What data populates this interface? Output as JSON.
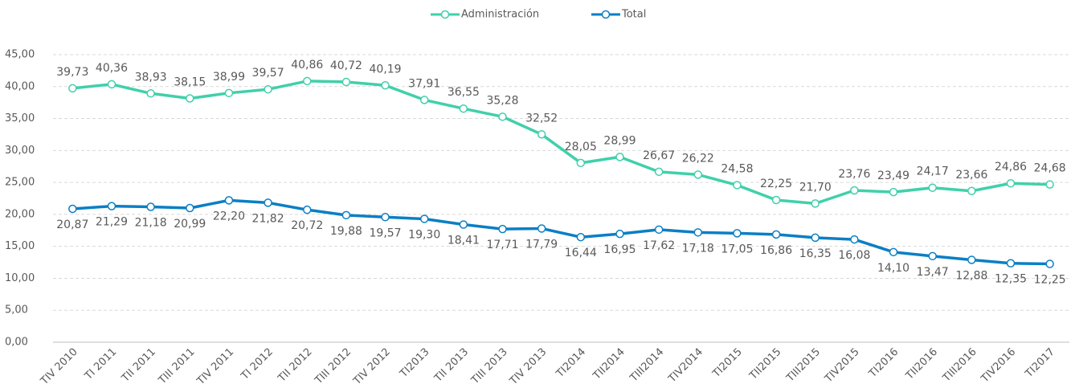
{
  "chart_data": {
    "type": "line",
    "categories": [
      "TIV 2010",
      "TI 2011",
      "TII 2011",
      "TIII 2011",
      "TIV 2011",
      "TI 2012",
      "TII 2012",
      "TIII 2012",
      "TIV 2012",
      "TI2013",
      "TII 2013",
      "TIII 2013",
      "TIV 2013",
      "TI2014",
      "TII2014",
      "TIII2014",
      "TIV2014",
      "TI2015",
      "TII2015",
      "TIII2015",
      "TIV2015",
      "TI2016",
      "TII2016",
      "TIII2016",
      "TIV2016",
      "TI2017"
    ],
    "series": [
      {
        "name": "Administración",
        "color": "#40d0aa",
        "values": [
          39.73,
          40.36,
          38.93,
          38.15,
          38.99,
          39.57,
          40.86,
          40.72,
          40.19,
          37.91,
          36.55,
          35.28,
          32.52,
          28.05,
          28.99,
          26.67,
          26.22,
          24.58,
          22.25,
          21.7,
          23.76,
          23.49,
          24.17,
          23.66,
          24.86,
          24.68
        ],
        "value_labels": [
          "39,73",
          "40,36",
          "38,93",
          "38,15",
          "38,99",
          "39,57",
          "40,86",
          "40,72",
          "40,19",
          "37,91",
          "36,55",
          "35,28",
          "32,52",
          "28,05",
          "28,99",
          "26,67",
          "26,22",
          "24,58",
          "22,25",
          "21,70",
          "23,76",
          "23,49",
          "24,17",
          "23,66",
          "24,86",
          "24,68"
        ]
      },
      {
        "name": "Total",
        "color": "#0b7fc4",
        "values": [
          20.87,
          21.29,
          21.18,
          20.99,
          22.2,
          21.82,
          20.72,
          19.88,
          19.57,
          19.3,
          18.41,
          17.71,
          17.79,
          16.44,
          16.95,
          17.62,
          17.18,
          17.05,
          16.86,
          16.35,
          16.08,
          14.1,
          13.47,
          12.88,
          12.35,
          12.25
        ],
        "value_labels": [
          "20,87",
          "21,29",
          "21,18",
          "20,99",
          "22,20",
          "21,82",
          "20,72",
          "19,88",
          "19,57",
          "19,30",
          "18,41",
          "17,71",
          "17,79",
          "16,44",
          "16,95",
          "17,62",
          "17,18",
          "17,05",
          "16,86",
          "16,35",
          "16,08",
          "14,10",
          "13,47",
          "12,88",
          "12,35",
          "12,25"
        ]
      }
    ],
    "ylim": [
      0,
      45
    ],
    "yticks": [
      {
        "value": 0,
        "label": "0,00"
      },
      {
        "value": 5,
        "label": "5,00"
      },
      {
        "value": 10,
        "label": "10,00"
      },
      {
        "value": 15,
        "label": "15,00"
      },
      {
        "value": 20,
        "label": "20,00"
      },
      {
        "value": 25,
        "label": "25,00"
      },
      {
        "value": 30,
        "label": "30,00"
      },
      {
        "value": 35,
        "label": "35,00"
      },
      {
        "value": 40,
        "label": "40,00"
      },
      {
        "value": 45,
        "label": "45,00"
      }
    ],
    "grid": true,
    "legend": "top"
  }
}
